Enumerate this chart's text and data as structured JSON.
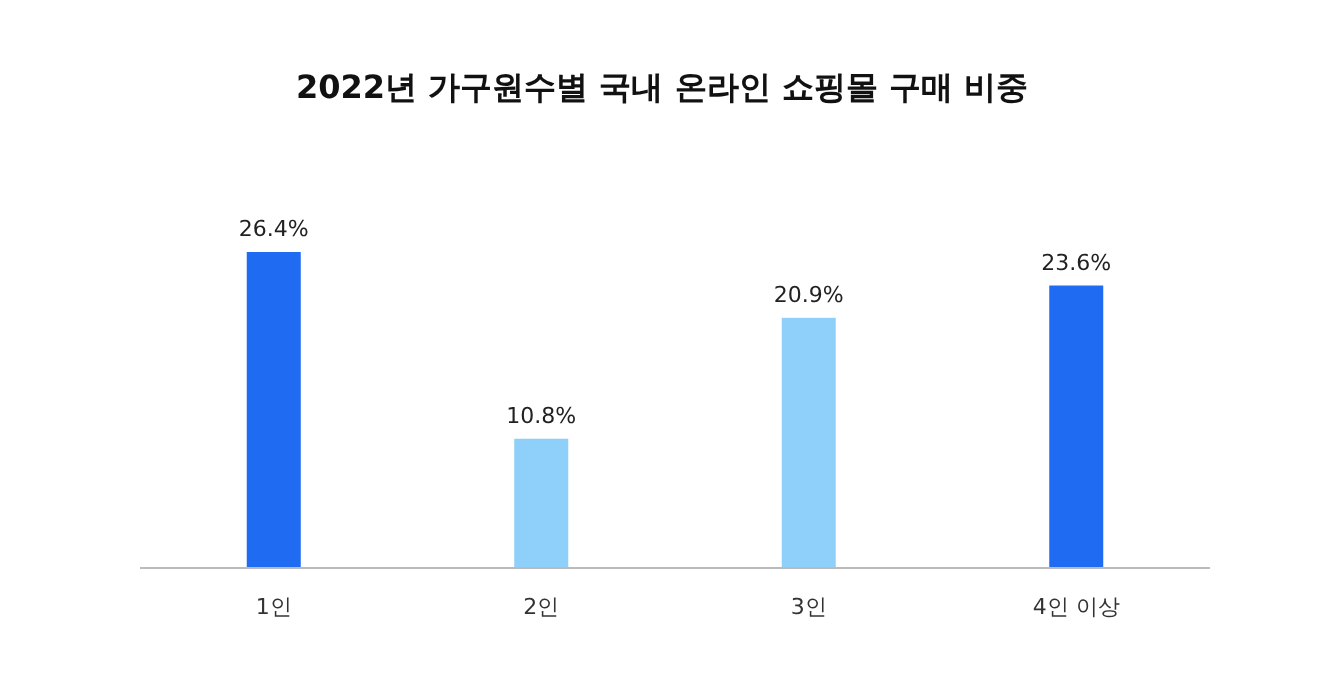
{
  "chart_data": {
    "type": "bar",
    "title": "2022년 가구원수별 국내 온라인 쇼핑몰 구매 비중",
    "categories": [
      "1인",
      "2인",
      "3인",
      "4인 이상"
    ],
    "values": [
      26.4,
      10.8,
      20.9,
      23.6
    ],
    "value_labels": [
      "26.4%",
      "10.8%",
      "20.9%",
      "23.6%"
    ],
    "colors": [
      "#1f6bf2",
      "#8fd0fa",
      "#8fd0fa",
      "#1f6bf2"
    ]
  }
}
